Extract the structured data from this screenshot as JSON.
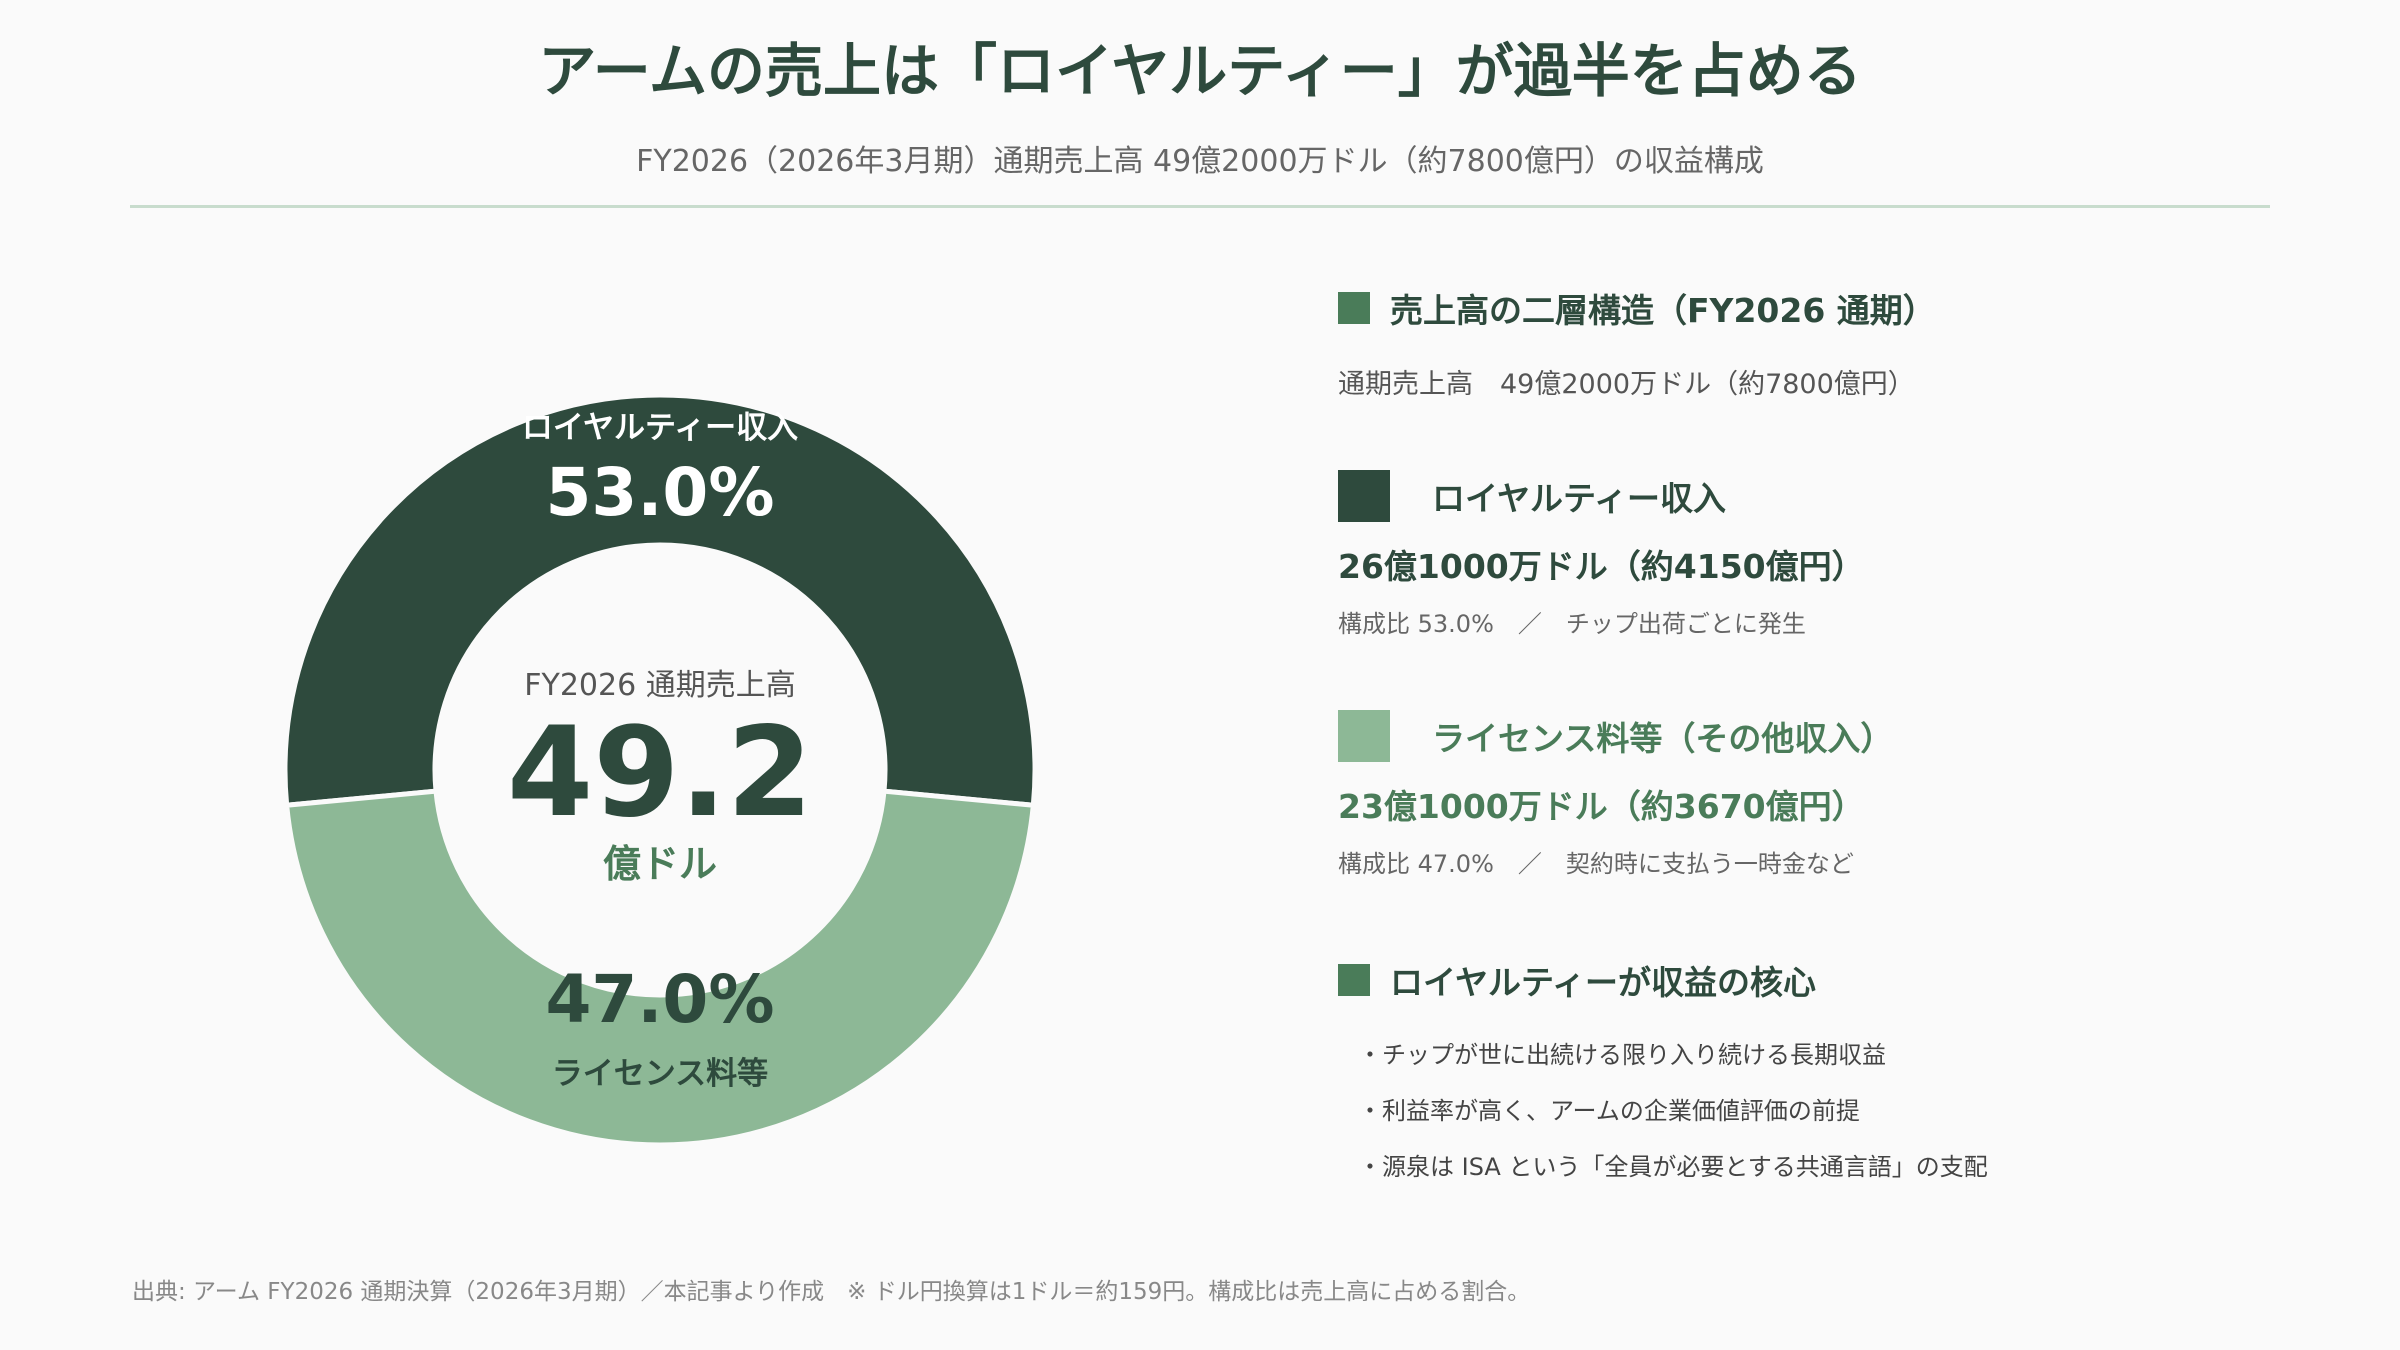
{
  "header": {
    "title": "アームの売上は「ロイヤルティー」が過半を占める",
    "subtitle": "FY2026（2026年3月期）通期売上高 49億2000万ドル（約7800億円）の収益構成"
  },
  "chart_data": {
    "type": "pie",
    "center": {
      "caption": "FY2026 通期売上高",
      "value": "49.2",
      "unit": "億ドル"
    },
    "slices": [
      {
        "label": "ロイヤルティー収入",
        "value": 53.0,
        "display": "53.0%",
        "color": "#2e4a3d"
      },
      {
        "label": "ライセンス料等",
        "value": 47.0,
        "display": "47.0%",
        "color": "#8db896"
      }
    ]
  },
  "panel": {
    "structure": {
      "heading": "売上高の二層構造（FY2026 通期）",
      "total": "通期売上高　49億2000万ドル（約7800億円）"
    },
    "royalty": {
      "heading": "ロイヤルティー収入",
      "amount": "26億1000万ドル（約4150億円）",
      "note": "構成比 53.0%　／　チップ出荷ごとに発生"
    },
    "license": {
      "heading": "ライセンス料等（その他収入）",
      "amount": "23億1000万ドル（約3670億円）",
      "note": "構成比 47.0%　／　契約時に支払う一時金など"
    },
    "core": {
      "heading": "ロイヤルティーが収益の核心",
      "bullets": [
        "・チップが世に出続ける限り入り続ける長期収益",
        "・利益率が高く、アームの企業価値評価の前提",
        "・源泉は ISA という「全員が必要とする共通言語」の支配"
      ]
    }
  },
  "colors": {
    "dark": "#2e4a3d",
    "light": "#8db896",
    "accent": "#4a7c59"
  },
  "footer": {
    "source": "出典: アーム FY2026 通期決算（2026年3月期）／本記事より作成　※ ドル円換算は1ドル＝約159円。構成比は売上高に占める割合。"
  }
}
